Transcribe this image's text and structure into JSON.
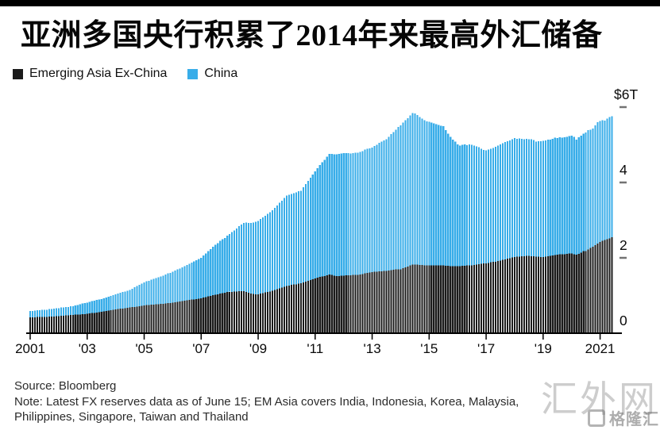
{
  "page": {
    "background": "#ffffff",
    "top_bar_color": "#000000"
  },
  "header": {
    "title": "亚洲多国央行积累了2014年来最高外汇储备"
  },
  "legend": {
    "items": [
      {
        "label": "Emerging Asia Ex-China",
        "color": "#1b1b1b"
      },
      {
        "label": "China",
        "color": "#38ade9"
      }
    ]
  },
  "footer": {
    "source": "Source: Bloomberg",
    "note_line1": "Note: Latest FX reserves data as of June 15; EM Asia covers India, Indonesia, Korea, Malaysia,",
    "note_line2": "Philippines, Singapore, Taiwan and Thailand"
  },
  "watermark": {
    "text": "汇外网",
    "logo_text": "格隆汇"
  },
  "chart_data": {
    "type": "bar",
    "stacked": true,
    "title": "亚洲多国央行积累了2014年来最高外汇储备",
    "unit": "USD trillions",
    "frequency": "monthly",
    "x_start": "2001-01",
    "x_end": "2021-06",
    "xlabel": "",
    "ylabel": "$6T",
    "ylim": [
      0,
      6
    ],
    "grid": false,
    "legend_position": "top-left",
    "x_tick_labels": [
      "2001",
      "'03",
      "'05",
      "'07",
      "'09",
      "'11",
      "'13",
      "'15",
      "'17",
      "'19",
      "2021"
    ],
    "y_ticks": [
      {
        "value": 6,
        "label": "$6T"
      },
      {
        "value": 4,
        "label": "4"
      },
      {
        "value": 2,
        "label": "2"
      },
      {
        "value": 0,
        "label": "0"
      }
    ],
    "series": [
      {
        "name": "Emerging Asia Ex-China",
        "color": "#1b1b1b",
        "values": [
          0.42,
          0.42,
          0.42,
          0.43,
          0.43,
          0.43,
          0.43,
          0.43,
          0.44,
          0.44,
          0.44,
          0.45,
          0.45,
          0.46,
          0.46,
          0.47,
          0.47,
          0.48,
          0.48,
          0.49,
          0.49,
          0.5,
          0.51,
          0.51,
          0.52,
          0.53,
          0.54,
          0.54,
          0.55,
          0.56,
          0.57,
          0.58,
          0.59,
          0.6,
          0.61,
          0.62,
          0.63,
          0.64,
          0.65,
          0.65,
          0.66,
          0.67,
          0.68,
          0.69,
          0.7,
          0.71,
          0.72,
          0.73,
          0.74,
          0.75,
          0.75,
          0.76,
          0.76,
          0.77,
          0.77,
          0.78,
          0.78,
          0.79,
          0.8,
          0.8,
          0.81,
          0.82,
          0.83,
          0.84,
          0.85,
          0.86,
          0.87,
          0.88,
          0.89,
          0.9,
          0.91,
          0.92,
          0.93,
          0.95,
          0.96,
          0.98,
          0.99,
          1.01,
          1.02,
          1.03,
          1.05,
          1.06,
          1.07,
          1.09,
          1.1,
          1.1,
          1.11,
          1.11,
          1.12,
          1.12,
          1.12,
          1.1,
          1.07,
          1.05,
          1.04,
          1.03,
          1.03,
          1.05,
          1.06,
          1.08,
          1.1,
          1.11,
          1.13,
          1.15,
          1.17,
          1.19,
          1.21,
          1.23,
          1.25,
          1.26,
          1.28,
          1.29,
          1.3,
          1.32,
          1.33,
          1.35,
          1.37,
          1.39,
          1.41,
          1.43,
          1.45,
          1.47,
          1.49,
          1.51,
          1.52,
          1.54,
          1.56,
          1.55,
          1.53,
          1.52,
          1.52,
          1.53,
          1.53,
          1.54,
          1.54,
          1.54,
          1.55,
          1.55,
          1.55,
          1.56,
          1.57,
          1.59,
          1.6,
          1.61,
          1.62,
          1.63,
          1.63,
          1.64,
          1.64,
          1.65,
          1.65,
          1.66,
          1.67,
          1.68,
          1.69,
          1.7,
          1.7,
          1.73,
          1.75,
          1.77,
          1.8,
          1.82,
          1.82,
          1.82,
          1.81,
          1.81,
          1.8,
          1.8,
          1.8,
          1.8,
          1.8,
          1.8,
          1.8,
          1.8,
          1.8,
          1.79,
          1.79,
          1.78,
          1.78,
          1.78,
          1.78,
          1.78,
          1.79,
          1.79,
          1.8,
          1.8,
          1.8,
          1.81,
          1.82,
          1.83,
          1.84,
          1.85,
          1.85,
          1.86,
          1.88,
          1.89,
          1.9,
          1.92,
          1.93,
          1.95,
          1.96,
          1.98,
          1.99,
          2.01,
          2.02,
          2.03,
          2.03,
          2.04,
          2.04,
          2.05,
          2.05,
          2.04,
          2.04,
          2.03,
          2.03,
          2.02,
          2.02,
          2.03,
          2.04,
          2.05,
          2.06,
          2.07,
          2.08,
          2.09,
          2.1,
          2.1,
          2.11,
          2.12,
          2.12,
          2.1,
          2.08,
          2.11,
          2.14,
          2.18,
          2.18,
          2.22,
          2.26,
          2.3,
          2.34,
          2.38,
          2.42,
          2.45,
          2.47,
          2.5,
          2.52,
          2.55
        ]
      },
      {
        "name": "China",
        "color": "#38ade9",
        "values": [
          0.17,
          0.17,
          0.18,
          0.18,
          0.18,
          0.19,
          0.19,
          0.19,
          0.2,
          0.2,
          0.21,
          0.21,
          0.21,
          0.22,
          0.22,
          0.23,
          0.23,
          0.24,
          0.24,
          0.25,
          0.26,
          0.27,
          0.28,
          0.29,
          0.29,
          0.3,
          0.31,
          0.32,
          0.33,
          0.34,
          0.34,
          0.35,
          0.36,
          0.37,
          0.38,
          0.39,
          0.4,
          0.41,
          0.42,
          0.44,
          0.45,
          0.46,
          0.47,
          0.49,
          0.52,
          0.54,
          0.56,
          0.59,
          0.61,
          0.63,
          0.64,
          0.66,
          0.68,
          0.69,
          0.71,
          0.73,
          0.75,
          0.77,
          0.79,
          0.8,
          0.82,
          0.84,
          0.86,
          0.88,
          0.9,
          0.92,
          0.94,
          0.96,
          0.98,
          1.01,
          1.03,
          1.05,
          1.07,
          1.11,
          1.16,
          1.2,
          1.24,
          1.29,
          1.33,
          1.36,
          1.4,
          1.43,
          1.46,
          1.5,
          1.53,
          1.58,
          1.62,
          1.67,
          1.72,
          1.76,
          1.81,
          1.84,
          1.86,
          1.88,
          1.9,
          1.93,
          1.95,
          1.98,
          2.01,
          2.04,
          2.07,
          2.1,
          2.13,
          2.18,
          2.22,
          2.27,
          2.31,
          2.36,
          2.4,
          2.41,
          2.42,
          2.43,
          2.44,
          2.45,
          2.45,
          2.52,
          2.59,
          2.65,
          2.72,
          2.78,
          2.85,
          2.91,
          2.97,
          3.03,
          3.08,
          3.14,
          3.2,
          3.21,
          3.22,
          3.23,
          3.24,
          3.24,
          3.25,
          3.24,
          3.24,
          3.23,
          3.23,
          3.24,
          3.24,
          3.25,
          3.26,
          3.28,
          3.29,
          3.3,
          3.31,
          3.34,
          3.37,
          3.41,
          3.44,
          3.47,
          3.5,
          3.55,
          3.61,
          3.66,
          3.71,
          3.77,
          3.82,
          3.86,
          3.9,
          3.94,
          3.98,
          4.02,
          4.01,
          3.97,
          3.93,
          3.89,
          3.85,
          3.82,
          3.81,
          3.79,
          3.77,
          3.75,
          3.73,
          3.71,
          3.69,
          3.6,
          3.51,
          3.43,
          3.36,
          3.3,
          3.23,
          3.2,
          3.21,
          3.22,
          3.19,
          3.21,
          3.2,
          3.17,
          3.14,
          3.11,
          3.05,
          3.01,
          3.0,
          3.01,
          3.02,
          3.03,
          3.05,
          3.06,
          3.08,
          3.09,
          3.11,
          3.12,
          3.13,
          3.14,
          3.16,
          3.13,
          3.14,
          3.12,
          3.11,
          3.11,
          3.1,
          3.11,
          3.09,
          3.05,
          3.06,
          3.07,
          3.09,
          3.09,
          3.1,
          3.09,
          3.1,
          3.12,
          3.1,
          3.11,
          3.09,
          3.1,
          3.1,
          3.11,
          3.12,
          3.11,
          3.06,
          3.09,
          3.1,
          3.11,
          3.15,
          3.17,
          3.14,
          3.13,
          3.18,
          3.22,
          3.21,
          3.2,
          3.17,
          3.2,
          3.22,
          3.21
        ]
      }
    ]
  }
}
